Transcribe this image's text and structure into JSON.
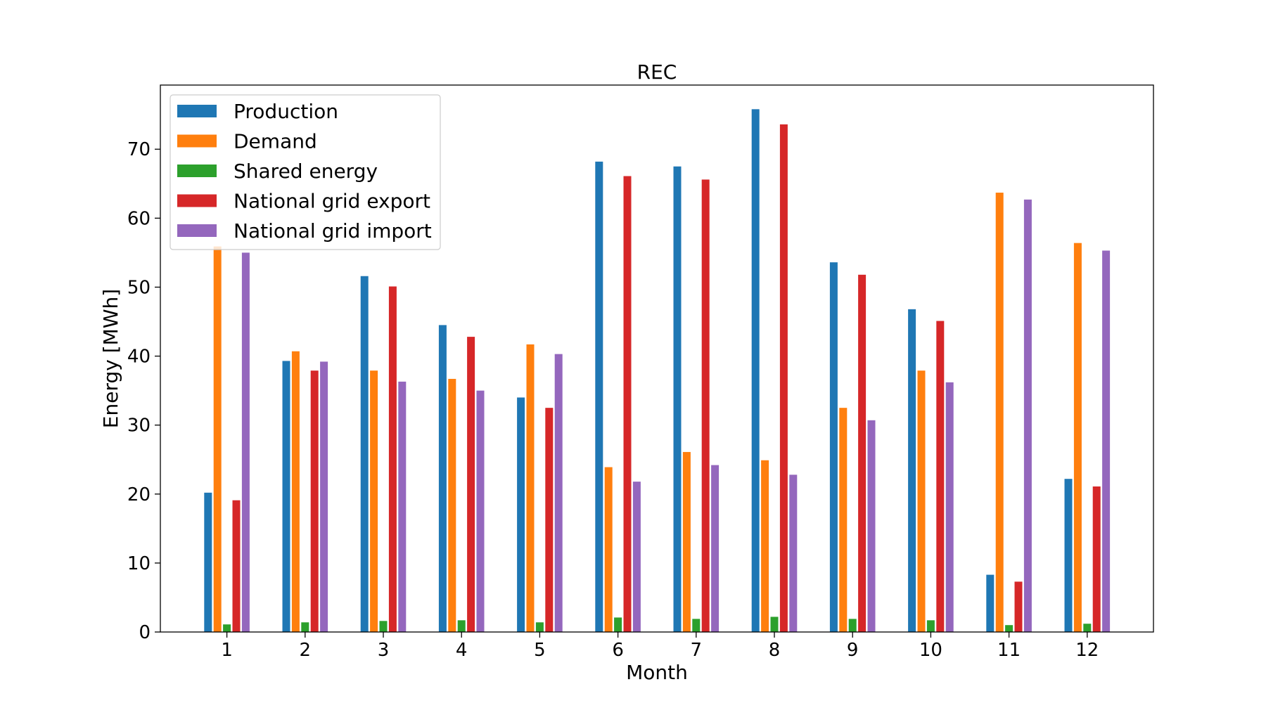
{
  "chart_data": {
    "type": "bar",
    "title": "REC",
    "xlabel": "Month",
    "ylabel": "Energy [MWh]",
    "categories": [
      "1",
      "2",
      "3",
      "4",
      "5",
      "6",
      "7",
      "8",
      "9",
      "10",
      "11",
      "12"
    ],
    "yticks": [
      0,
      10,
      20,
      30,
      40,
      50,
      60,
      70
    ],
    "ylim": [
      0,
      79.3
    ],
    "grid": false,
    "legend_position": "top-left",
    "series": [
      {
        "name": "Production",
        "color": "#1f77b4",
        "values": [
          20.2,
          39.3,
          51.6,
          44.5,
          34.0,
          68.2,
          67.5,
          75.8,
          53.6,
          46.8,
          8.3,
          22.2
        ]
      },
      {
        "name": "Demand",
        "color": "#ff7f0e",
        "values": [
          55.9,
          40.7,
          37.9,
          36.7,
          41.7,
          23.9,
          26.1,
          24.9,
          32.5,
          37.9,
          63.7,
          56.4
        ]
      },
      {
        "name": "Shared energy",
        "color": "#2ca02c",
        "values": [
          1.1,
          1.4,
          1.6,
          1.7,
          1.4,
          2.1,
          1.9,
          2.2,
          1.9,
          1.7,
          1.0,
          1.2
        ]
      },
      {
        "name": "National grid export",
        "color": "#d62728",
        "values": [
          19.1,
          37.9,
          50.1,
          42.8,
          32.5,
          66.1,
          65.6,
          73.6,
          51.8,
          45.1,
          7.3,
          21.1
        ]
      },
      {
        "name": "National grid import",
        "color": "#9467bd",
        "values": [
          55.0,
          39.2,
          36.3,
          35.0,
          40.3,
          21.8,
          24.2,
          22.8,
          30.7,
          36.2,
          62.7,
          55.3
        ]
      }
    ]
  }
}
